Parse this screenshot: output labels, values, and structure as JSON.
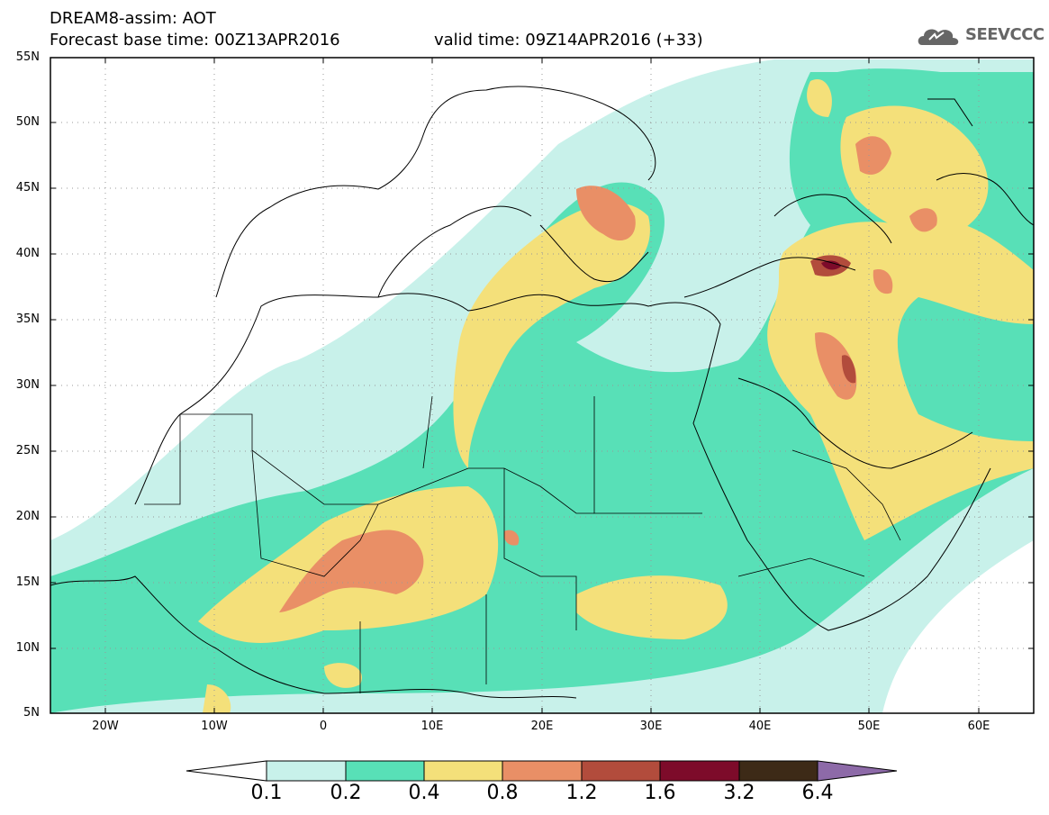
{
  "header": {
    "line1": "DREAM8-assim: AOT",
    "line2": "Forecast base time: 00Z13APR2016",
    "line3": "valid time: 09Z14APR2016 (+33)",
    "logo_text": "SEEVCCC"
  },
  "map": {
    "lat_labels": [
      "55N",
      "50N",
      "45N",
      "40N",
      "35N",
      "30N",
      "25N",
      "20N",
      "15N",
      "10N",
      "5N"
    ],
    "lon_labels": [
      "20W",
      "10W",
      "0",
      "10E",
      "20E",
      "30E",
      "40E",
      "50E",
      "60E"
    ],
    "lat_range": [
      5,
      55
    ],
    "lon_range": [
      -25,
      65
    ],
    "grid": true
  },
  "legend": {
    "values": [
      "0.1",
      "0.2",
      "0.4",
      "0.8",
      "1.2",
      "1.6",
      "3.2",
      "6.4"
    ],
    "colors": [
      "#ffffff",
      "#c8f1ea",
      "#58e0b7",
      "#f4e07a",
      "#e98f66",
      "#b24c3c",
      "#7d0b2a",
      "#3d2a17",
      "#8d6aa8"
    ]
  }
}
